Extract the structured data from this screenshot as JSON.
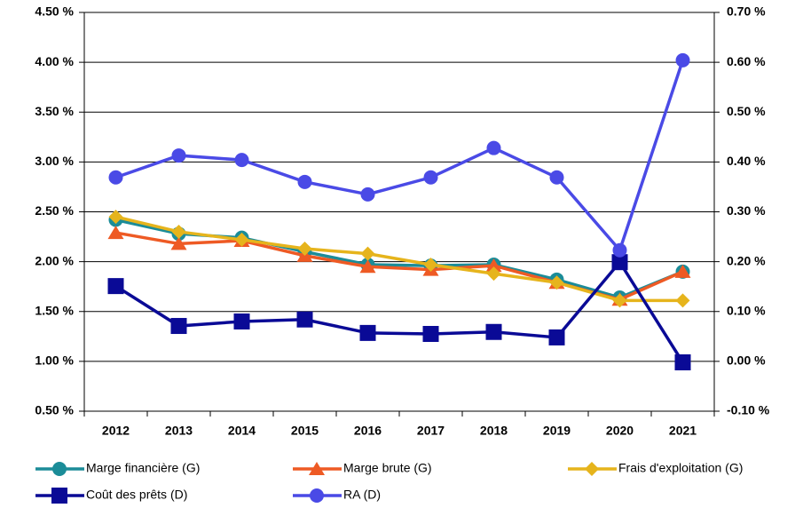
{
  "chart_data": {
    "type": "line",
    "categories": [
      "2012",
      "2013",
      "2014",
      "2015",
      "2016",
      "2017",
      "2018",
      "2019",
      "2020",
      "2021"
    ],
    "ylim": [
      0.5,
      4.5
    ],
    "yticks": [
      {
        "value": 0.5,
        "label": "0.50 %"
      },
      {
        "value": 1.0,
        "label": "1.00 %"
      },
      {
        "value": 1.5,
        "label": "1.50 %"
      },
      {
        "value": 2.0,
        "label": "2.00 %"
      },
      {
        "value": 2.5,
        "label": "2.50 %"
      },
      {
        "value": 3.0,
        "label": "3.00 %"
      },
      {
        "value": 3.5,
        "label": "3.50 %"
      },
      {
        "value": 4.0,
        "label": "4.00 %"
      },
      {
        "value": 4.5,
        "label": "4.50 %"
      }
    ],
    "y2lim": [
      -0.1,
      0.7
    ],
    "y2ticks": [
      {
        "value": -0.1,
        "label": "-0.10 %"
      },
      {
        "value": 0.0,
        "label": "0.00 %"
      },
      {
        "value": 0.1,
        "label": "0.10 %"
      },
      {
        "value": 0.2,
        "label": "0.20 %"
      },
      {
        "value": 0.3,
        "label": "0.30 %"
      },
      {
        "value": 0.4,
        "label": "0.40 %"
      },
      {
        "value": 0.5,
        "label": "0.50 %"
      },
      {
        "value": 0.6,
        "label": "0.60 %"
      },
      {
        "value": 0.7,
        "label": "0.70 %"
      }
    ],
    "grid": true,
    "legend": "bottom",
    "series": [
      {
        "name": "Marge financière (G)",
        "color": "#1b8c98",
        "marker": "circle",
        "values": [
          2.42,
          2.28,
          2.24,
          2.1,
          1.97,
          1.96,
          1.97,
          1.82,
          1.64,
          1.9
        ]
      },
      {
        "name": "Marge brute (G)",
        "color": "#ee5a24",
        "marker": "triangle",
        "values": [
          2.29,
          2.18,
          2.21,
          2.06,
          1.95,
          1.92,
          1.96,
          1.79,
          1.62,
          1.9
        ]
      },
      {
        "name": "Frais d'exploitation (G)",
        "color": "#e6b41c",
        "marker": "diamond",
        "values": [
          2.45,
          2.3,
          2.22,
          2.13,
          2.08,
          1.97,
          1.88,
          1.79,
          1.61,
          1.61
        ]
      },
      {
        "name": "Coût des prêts (D)",
        "color": "#0a0a96",
        "marker": "square",
        "axis": "y2",
        "values": [
          0.151,
          0.071,
          0.08,
          0.084,
          0.057,
          0.055,
          0.059,
          0.048,
          0.199,
          -0.002
        ]
      },
      {
        "name": "RA (D)",
        "color": "#4a4ae6",
        "marker": "circle",
        "axis": "y2",
        "values": [
          0.369,
          0.413,
          0.404,
          0.36,
          0.335,
          0.369,
          0.428,
          0.369,
          0.223,
          0.604
        ]
      }
    ]
  }
}
